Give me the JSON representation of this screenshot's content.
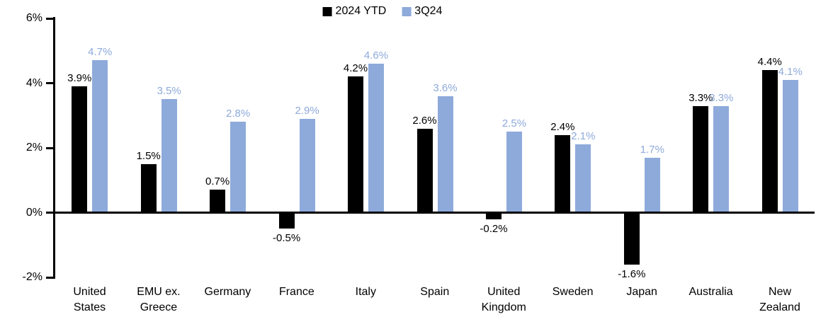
{
  "chart_data": {
    "type": "bar",
    "title": "",
    "xlabel": "",
    "ylabel": "",
    "categories": [
      "United States",
      "EMU ex. Greece",
      "Germany",
      "France",
      "Italy",
      "Spain",
      "United Kingdom",
      "Sweden",
      "Japan",
      "Australia",
      "New Zealand"
    ],
    "category_lines": [
      [
        "United",
        "States"
      ],
      [
        "EMU ex.",
        "Greece"
      ],
      [
        "Germany"
      ],
      [
        "France"
      ],
      [
        "Italy"
      ],
      [
        "Spain"
      ],
      [
        "United",
        "Kingdom"
      ],
      [
        "Sweden"
      ],
      [
        "Japan"
      ],
      [
        "Australia"
      ],
      [
        "New",
        "Zealand"
      ]
    ],
    "series": [
      {
        "name": "2024 YTD",
        "color": "#000000",
        "values": [
          3.9,
          1.5,
          0.7,
          -0.5,
          4.2,
          2.6,
          -0.2,
          2.4,
          -1.6,
          3.3,
          4.4
        ],
        "labels": [
          "3.9%",
          "1.5%",
          "0.7%",
          "-0.5%",
          "4.2%",
          "2.6%",
          "-0.2%",
          "2.4%",
          "-1.6%",
          "3.3%",
          "4.4%"
        ]
      },
      {
        "name": "3Q24",
        "color": "#8EAADB",
        "values": [
          4.7,
          3.5,
          2.8,
          2.9,
          4.6,
          3.6,
          2.5,
          2.1,
          1.7,
          3.3,
          4.1
        ],
        "labels": [
          "4.7%",
          "3.5%",
          "2.8%",
          "2.9%",
          "4.6%",
          "3.6%",
          "2.5%",
          "2.1%",
          "1.7%",
          "3.3%",
          "4.1%"
        ]
      }
    ],
    "ylim": [
      -2,
      6
    ],
    "yticks": [
      -2,
      0,
      2,
      4,
      6
    ],
    "ytick_labels": [
      "-2%",
      "0%",
      "2%",
      "4%",
      "6%"
    ],
    "grid": false,
    "legend_position": "top-center",
    "axis_color": "#000000"
  }
}
